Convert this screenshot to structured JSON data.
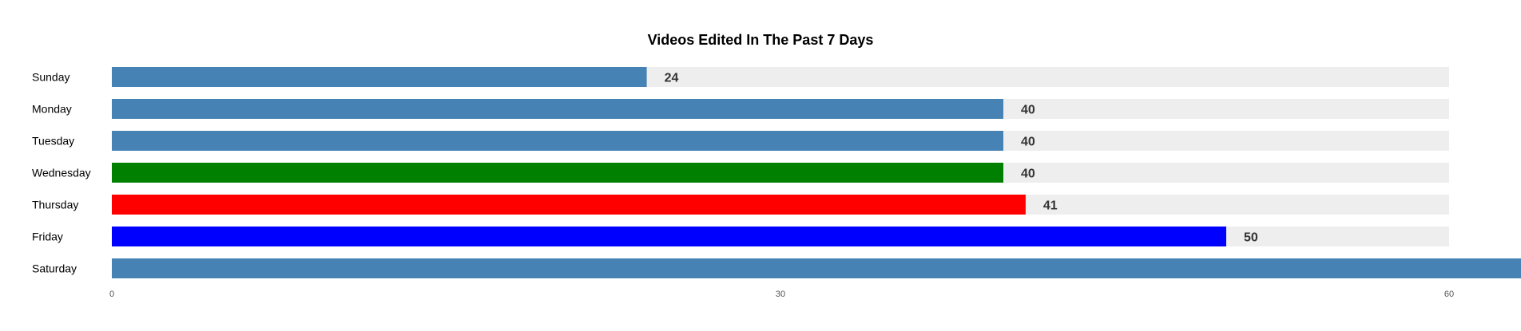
{
  "chart_data": {
    "type": "bar",
    "orientation": "horizontal",
    "title": "Videos Edited In The Past 7 Days",
    "xlabel": "",
    "ylabel": "",
    "categories": [
      "Sunday",
      "Monday",
      "Tuesday",
      "Wednesday",
      "Thursday",
      "Friday",
      "Saturday"
    ],
    "values": [
      24,
      40,
      40,
      40,
      41,
      50,
      64
    ],
    "value_labels": [
      "24",
      "40",
      "40",
      "40",
      "41",
      "50",
      ""
    ],
    "bar_colors": [
      "#4682b4",
      "#4682b4",
      "#4682b4",
      "#008000",
      "#ff0000",
      "#0000ff",
      "#4682b4"
    ],
    "track_color": "#eeeeee",
    "xlim": [
      0,
      60
    ],
    "x_ticks": [
      0,
      30,
      60
    ],
    "x_tick_labels": [
      "0",
      "30",
      "60"
    ],
    "grid": false,
    "legend": "none"
  }
}
